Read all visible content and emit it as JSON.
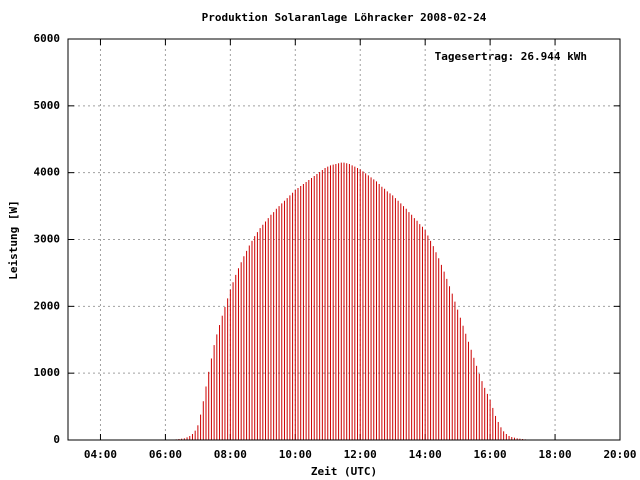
{
  "chart_data": {
    "type": "impulse",
    "title": "Produktion Solaranlage Löhracker 2008-02-24",
    "annotation": "Tagesertrag: 26.944 kWh",
    "x_label": "Zeit (UTC)",
    "y_label": "Leistung [W]",
    "color": "#cc0000",
    "grid": true,
    "xlim": [
      180,
      1200
    ],
    "xticks": [
      {
        "value": 240,
        "label": "04:00"
      },
      {
        "value": 360,
        "label": "06:00"
      },
      {
        "value": 480,
        "label": "08:00"
      },
      {
        "value": 600,
        "label": "10:00"
      },
      {
        "value": 720,
        "label": "12:00"
      },
      {
        "value": 840,
        "label": "14:00"
      },
      {
        "value": 960,
        "label": "16:00"
      },
      {
        "value": 1080,
        "label": "18:00"
      },
      {
        "value": 1200,
        "label": "20:00"
      }
    ],
    "ylim": [
      0,
      6000
    ],
    "yticks": [
      0,
      1000,
      2000,
      3000,
      4000,
      5000,
      6000
    ],
    "x": [
      380,
      385,
      390,
      395,
      400,
      405,
      410,
      415,
      420,
      425,
      430,
      435,
      440,
      445,
      450,
      455,
      460,
      465,
      470,
      475,
      480,
      485,
      490,
      495,
      500,
      505,
      510,
      515,
      520,
      525,
      530,
      535,
      540,
      545,
      550,
      555,
      560,
      565,
      570,
      575,
      580,
      585,
      590,
      595,
      600,
      605,
      610,
      615,
      620,
      625,
      630,
      635,
      640,
      645,
      650,
      655,
      660,
      665,
      670,
      675,
      680,
      685,
      690,
      695,
      700,
      705,
      710,
      715,
      720,
      725,
      730,
      735,
      740,
      745,
      750,
      755,
      760,
      765,
      770,
      775,
      780,
      785,
      790,
      795,
      800,
      805,
      810,
      815,
      820,
      825,
      830,
      835,
      840,
      845,
      850,
      855,
      860,
      865,
      870,
      875,
      880,
      885,
      890,
      895,
      900,
      905,
      910,
      915,
      920,
      925,
      930,
      935,
      940,
      945,
      950,
      955,
      960,
      965,
      970,
      975,
      980,
      985,
      990,
      995,
      1000,
      1005,
      1010,
      1015,
      1020,
      1025
    ],
    "values": [
      10,
      15,
      20,
      25,
      40,
      60,
      90,
      140,
      220,
      380,
      580,
      800,
      1020,
      1220,
      1420,
      1580,
      1720,
      1860,
      1990,
      2120,
      2250,
      2360,
      2470,
      2570,
      2660,
      2750,
      2830,
      2910,
      2980,
      3050,
      3110,
      3170,
      3220,
      3270,
      3320,
      3370,
      3410,
      3460,
      3500,
      3540,
      3580,
      3620,
      3660,
      3700,
      3740,
      3770,
      3800,
      3830,
      3860,
      3890,
      3920,
      3950,
      3980,
      4010,
      4040,
      4070,
      4090,
      4110,
      4120,
      4130,
      4140,
      4150,
      4150,
      4140,
      4130,
      4110,
      4090,
      4070,
      4050,
      4020,
      3990,
      3960,
      3930,
      3900,
      3870,
      3830,
      3790,
      3760,
      3720,
      3690,
      3660,
      3620,
      3580,
      3540,
      3500,
      3460,
      3410,
      3370,
      3320,
      3280,
      3230,
      3190,
      3140,
      3060,
      2980,
      2900,
      2810,
      2720,
      2620,
      2520,
      2410,
      2300,
      2190,
      2070,
      1950,
      1830,
      1710,
      1590,
      1470,
      1350,
      1230,
      1110,
      990,
      880,
      780,
      690,
      600,
      480,
      360,
      270,
      190,
      130,
      90,
      60,
      45,
      35,
      25,
      20,
      15,
      10
    ]
  }
}
